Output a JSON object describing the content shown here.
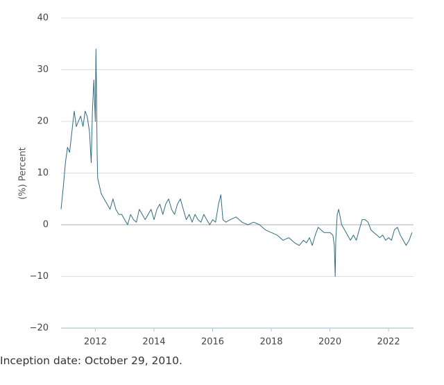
{
  "chart_data": {
    "type": "line",
    "ylabel": "(%) Percent",
    "xlabel": "",
    "ylim": [
      -20,
      40
    ],
    "xlim": [
      2010.83,
      2022.85
    ],
    "yticks": [
      -20,
      -10,
      0,
      10,
      20,
      30,
      40
    ],
    "ytick_labels": [
      "−20",
      "−10",
      "0",
      "10",
      "20",
      "30",
      "40"
    ],
    "xticks": [
      2012,
      2014,
      2016,
      2018,
      2020,
      2022
    ],
    "xtick_labels": [
      "2012",
      "2014",
      "2016",
      "2018",
      "2020",
      "2022"
    ],
    "grid": "horizontal",
    "legend": "none",
    "colors": {
      "line": "#2e6b80",
      "grid": "#dcdcdc",
      "zero_line": "#bdbdbd",
      "baseline": "#a8c8cf"
    },
    "series": [
      {
        "x": [
          2010.83,
          2010.9,
          2010.98,
          2011.05,
          2011.12,
          2011.2,
          2011.28,
          2011.35,
          2011.42,
          2011.5,
          2011.58,
          2011.65,
          2011.72,
          2011.8,
          2011.86,
          2011.9,
          2011.95,
          2012.0,
          2012.02,
          2012.04,
          2012.06,
          2012.08,
          2012.12,
          2012.2,
          2012.3,
          2012.4,
          2012.5,
          2012.6,
          2012.7,
          2012.8,
          2012.9,
          2013.0,
          2013.1,
          2013.2,
          2013.3,
          2013.4,
          2013.5,
          2013.6,
          2013.7,
          2013.8,
          2013.9,
          2014.0,
          2014.1,
          2014.2,
          2014.3,
          2014.4,
          2014.5,
          2014.6,
          2014.7,
          2014.8,
          2014.9,
          2015.0,
          2015.1,
          2015.2,
          2015.3,
          2015.4,
          2015.5,
          2015.6,
          2015.7,
          2015.8,
          2015.9,
          2016.0,
          2016.1,
          2016.2,
          2016.28,
          2016.35,
          2016.45,
          2016.6,
          2016.8,
          2017.0,
          2017.2,
          2017.4,
          2017.6,
          2017.8,
          2018.0,
          2018.2,
          2018.4,
          2018.6,
          2018.8,
          2018.95,
          2019.1,
          2019.2,
          2019.3,
          2019.4,
          2019.5,
          2019.6,
          2019.8,
          2020.0,
          2020.1,
          2020.15,
          2020.18,
          2020.2,
          2020.25,
          2020.3,
          2020.4,
          2020.5,
          2020.6,
          2020.7,
          2020.8,
          2020.9,
          2021.0,
          2021.1,
          2021.2,
          2021.3,
          2021.4,
          2021.5,
          2021.6,
          2021.7,
          2021.8,
          2021.9,
          2022.0,
          2022.1,
          2022.2,
          2022.3,
          2022.4,
          2022.5,
          2022.6,
          2022.7,
          2022.8
        ],
        "y": [
          3,
          7,
          12,
          15,
          14,
          18,
          22,
          19,
          20,
          21,
          19,
          22,
          21,
          18,
          12,
          22,
          28,
          20,
          34,
          26,
          14,
          9,
          8,
          6,
          5,
          4,
          3,
          5,
          3,
          2,
          2,
          1,
          0,
          2,
          1,
          0.5,
          3,
          2,
          1,
          2,
          3,
          1,
          3,
          4,
          2,
          4,
          5,
          3,
          2,
          4,
          5,
          3,
          1,
          2,
          0.5,
          2,
          1,
          0.5,
          2,
          1,
          0,
          1,
          0.5,
          4,
          5.8,
          1,
          0.5,
          1,
          1.5,
          0.5,
          0,
          0.5,
          0,
          -1,
          -1.5,
          -2,
          -3,
          -2.5,
          -3.5,
          -4,
          -3,
          -3.5,
          -2.5,
          -4,
          -2,
          -0.5,
          -1.5,
          -1.5,
          -2,
          -4,
          -10,
          -3,
          2,
          3,
          0,
          -1,
          -2,
          -3,
          -2,
          -3,
          -1,
          1,
          1,
          0.5,
          -1,
          -1.5,
          -2,
          -2.5,
          -2,
          -3,
          -2.5,
          -3,
          -1,
          -0.5,
          -2,
          -3,
          -4,
          -3,
          -1.5
        ]
      }
    ]
  },
  "footnote": "Inception date: October 29, 2010."
}
